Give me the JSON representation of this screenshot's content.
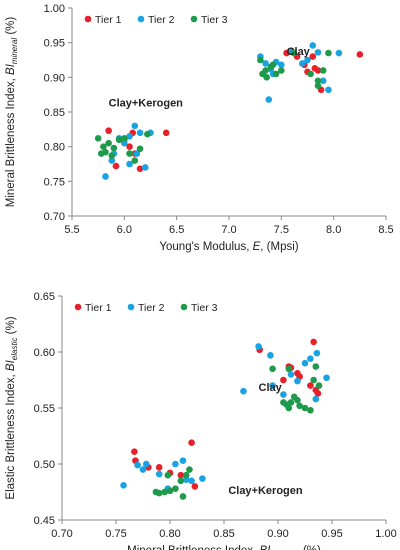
{
  "chart_data": [
    {
      "type": "scatter",
      "xlim": [
        5.5,
        8.5
      ],
      "ylim": [
        0.7,
        1.0
      ],
      "xticks": [
        "5.5",
        "6.0",
        "6.5",
        "7.0",
        "7.5",
        "8.0",
        "8.5"
      ],
      "yticks": [
        "0.70",
        "0.75",
        "0.80",
        "0.85",
        "0.90",
        "0.95",
        "1.00"
      ],
      "xlabel": {
        "text": "Young's Modulus, ",
        "ital": "E",
        "tail": ", (Mpsi)"
      },
      "ylabel": {
        "text": "Mineral Brittleness Index, ",
        "ital": "BI",
        "sub": "mineral",
        "tail": " (%)"
      },
      "legend_position": "top-left",
      "annotations": [
        {
          "text": "Clay",
          "x": 7.55,
          "y": 0.932
        },
        {
          "text": "Clay+Kerogen",
          "x": 5.85,
          "y": 0.858
        }
      ],
      "series": [
        {
          "name": "Tier 1",
          "color": "#e8202a",
          "points": [
            [
              5.85,
              0.823
            ],
            [
              6.0,
              0.81
            ],
            [
              6.05,
              0.8
            ],
            [
              6.08,
              0.82
            ],
            [
              6.1,
              0.79
            ],
            [
              6.15,
              0.768
            ],
            [
              6.4,
              0.82
            ],
            [
              5.92,
              0.772
            ],
            [
              7.55,
              0.935
            ],
            [
              7.6,
              0.937
            ],
            [
              7.65,
              0.93
            ],
            [
              7.72,
              0.918
            ],
            [
              7.75,
              0.908
            ],
            [
              7.8,
              0.93
            ],
            [
              7.85,
              0.91
            ],
            [
              7.88,
              0.882
            ],
            [
              8.25,
              0.933
            ],
            [
              7.82,
              0.913
            ]
          ]
        },
        {
          "name": "Tier 2",
          "color": "#1aa3e3",
          "points": [
            [
              5.82,
              0.757
            ],
            [
              5.9,
              0.79
            ],
            [
              5.95,
              0.812
            ],
            [
              6.0,
              0.805
            ],
            [
              6.05,
              0.815
            ],
            [
              6.1,
              0.83
            ],
            [
              6.15,
              0.82
            ],
            [
              6.2,
              0.77
            ],
            [
              6.25,
              0.82
            ],
            [
              6.05,
              0.775
            ],
            [
              5.88,
              0.78
            ],
            [
              6.12,
              0.79
            ],
            [
              7.3,
              0.93
            ],
            [
              7.35,
              0.92
            ],
            [
              7.4,
              0.912
            ],
            [
              7.45,
              0.922
            ],
            [
              7.5,
              0.918
            ],
            [
              7.38,
              0.868
            ],
            [
              7.6,
              0.937
            ],
            [
              7.75,
              0.925
            ],
            [
              7.8,
              0.946
            ],
            [
              7.85,
              0.936
            ],
            [
              7.9,
              0.895
            ],
            [
              7.95,
              0.882
            ],
            [
              8.05,
              0.935
            ],
            [
              7.42,
              0.905
            ],
            [
              7.7,
              0.92
            ]
          ]
        },
        {
          "name": "Tier 3",
          "color": "#1f9a4b",
          "points": [
            [
              5.75,
              0.812
            ],
            [
              5.78,
              0.79
            ],
            [
              5.8,
              0.8
            ],
            [
              5.82,
              0.792
            ],
            [
              5.85,
              0.805
            ],
            [
              5.9,
              0.798
            ],
            [
              5.95,
              0.81
            ],
            [
              6.0,
              0.812
            ],
            [
              6.05,
              0.79
            ],
            [
              6.1,
              0.78
            ],
            [
              6.15,
              0.797
            ],
            [
              6.22,
              0.818
            ],
            [
              5.88,
              0.787
            ],
            [
              7.3,
              0.925
            ],
            [
              7.32,
              0.905
            ],
            [
              7.35,
              0.91
            ],
            [
              7.4,
              0.915
            ],
            [
              7.45,
              0.905
            ],
            [
              7.5,
              0.91
            ],
            [
              7.42,
              0.918
            ],
            [
              7.78,
              0.905
            ],
            [
              7.85,
              0.895
            ],
            [
              7.9,
              0.91
            ],
            [
              7.95,
              0.935
            ],
            [
              7.62,
              0.935
            ],
            [
              7.85,
              0.888
            ],
            [
              7.36,
              0.9
            ]
          ]
        }
      ]
    },
    {
      "type": "scatter",
      "xlim": [
        0.7,
        1.0
      ],
      "ylim": [
        0.45,
        0.65
      ],
      "xticks": [
        "0.70",
        "0.75",
        "0.80",
        "0.85",
        "0.90",
        "0.95",
        "1.00"
      ],
      "yticks": [
        "0.45",
        "0.50",
        "0.55",
        "0.60",
        "0.65"
      ],
      "xlabel": {
        "text": "Mineral Brittleness Index, ",
        "ital": "BI",
        "sub": "mineral",
        "tail": ", (%)"
      },
      "ylabel": {
        "text": "Elastic Brittleness Index, ",
        "ital": "BI",
        "sub": "elastic",
        "tail": " (%)"
      },
      "legend_position": "top-left",
      "annotations": [
        {
          "text": "Clay",
          "x": 0.882,
          "y": 0.565
        },
        {
          "text": "Clay+Kerogen",
          "x": 0.854,
          "y": 0.473
        }
      ],
      "series": [
        {
          "name": "Tier 1",
          "color": "#e8202a",
          "points": [
            [
              0.767,
              0.511
            ],
            [
              0.78,
              0.497
            ],
            [
              0.79,
              0.497
            ],
            [
              0.8,
              0.492
            ],
            [
              0.81,
              0.49
            ],
            [
              0.82,
              0.519
            ],
            [
              0.823,
              0.48
            ],
            [
              0.768,
              0.503
            ],
            [
              0.883,
              0.602
            ],
            [
              0.905,
              0.575
            ],
            [
              0.91,
              0.587
            ],
            [
              0.912,
              0.586
            ],
            [
              0.918,
              0.581
            ],
            [
              0.93,
              0.57
            ],
            [
              0.933,
              0.609
            ],
            [
              0.935,
              0.566
            ],
            [
              0.937,
              0.563
            ],
            [
              0.92,
              0.578
            ]
          ]
        },
        {
          "name": "Tier 2",
          "color": "#1aa3e3",
          "points": [
            [
              0.757,
              0.481
            ],
            [
              0.77,
              0.499
            ],
            [
              0.778,
              0.5
            ],
            [
              0.79,
              0.491
            ],
            [
              0.805,
              0.5
            ],
            [
              0.812,
              0.503
            ],
            [
              0.815,
              0.486
            ],
            [
              0.82,
              0.485
            ],
            [
              0.83,
              0.487
            ],
            [
              0.775,
              0.495
            ],
            [
              0.798,
              0.478
            ],
            [
              0.868,
              0.565
            ],
            [
              0.882,
              0.605
            ],
            [
              0.893,
              0.597
            ],
            [
              0.895,
              0.57
            ],
            [
              0.905,
              0.562
            ],
            [
              0.912,
              0.58
            ],
            [
              0.918,
              0.574
            ],
            [
              0.925,
              0.59
            ],
            [
              0.93,
              0.594
            ],
            [
              0.936,
              0.599
            ],
            [
              0.945,
              0.577
            ],
            [
              0.935,
              0.558
            ]
          ]
        },
        {
          "name": "Tier 3",
          "color": "#1f9a4b",
          "points": [
            [
              0.787,
              0.475
            ],
            [
              0.79,
              0.474
            ],
            [
              0.795,
              0.475
            ],
            [
              0.8,
              0.476
            ],
            [
              0.805,
              0.478
            ],
            [
              0.81,
              0.485
            ],
            [
              0.812,
              0.471
            ],
            [
              0.815,
              0.49
            ],
            [
              0.818,
              0.495
            ],
            [
              0.798,
              0.49
            ],
            [
              0.895,
              0.585
            ],
            [
              0.905,
              0.555
            ],
            [
              0.908,
              0.553
            ],
            [
              0.91,
              0.55
            ],
            [
              0.912,
              0.555
            ],
            [
              0.915,
              0.56
            ],
            [
              0.918,
              0.557
            ],
            [
              0.92,
              0.552
            ],
            [
              0.925,
              0.55
            ],
            [
              0.93,
              0.548
            ],
            [
              0.933,
              0.575
            ],
            [
              0.935,
              0.587
            ],
            [
              0.938,
              0.57
            ],
            [
              0.91,
              0.585
            ]
          ]
        }
      ]
    }
  ]
}
